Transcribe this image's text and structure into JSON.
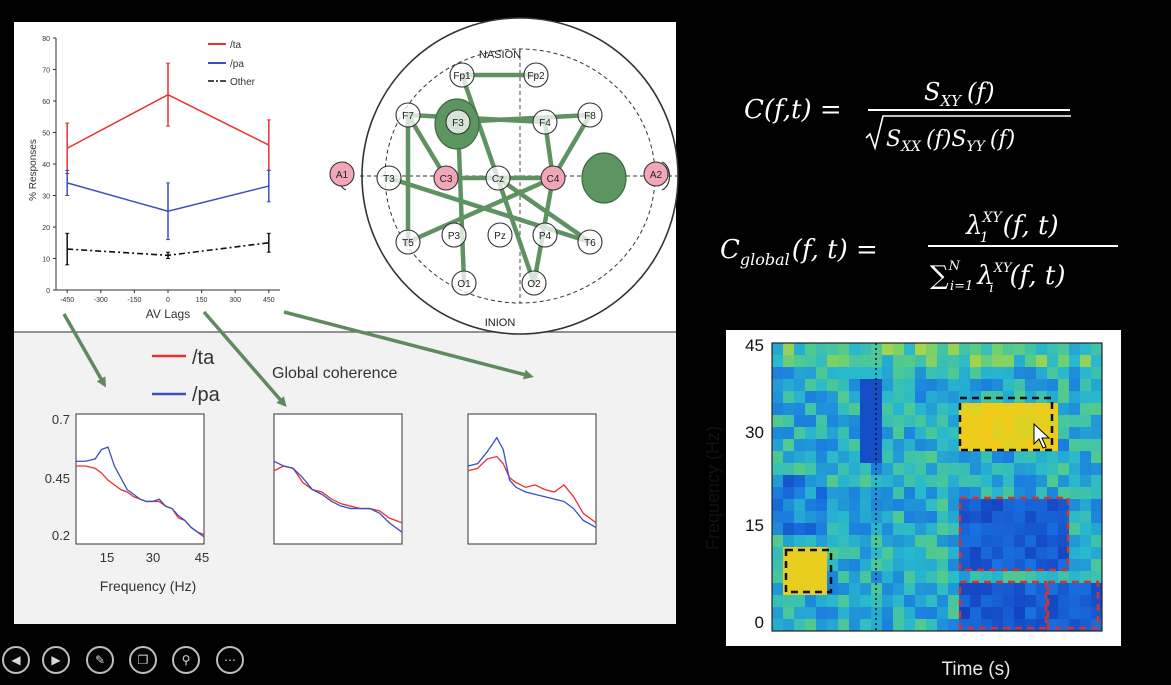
{
  "top_chart": {
    "ylabel": "% Responses",
    "xlabel": "AV Lags",
    "legend": [
      {
        "label": "/ta",
        "color": "#e8312f"
      },
      {
        "label": "/pa",
        "color": "#3b4fc2"
      },
      {
        "label": "Other",
        "color": "#111111"
      }
    ],
    "yticks": [
      "0",
      "10",
      "20",
      "30",
      "40",
      "50",
      "60",
      "70",
      "80"
    ],
    "xticks": [
      "-450",
      "-300",
      "-150",
      "0",
      "150",
      "300",
      "450"
    ]
  },
  "head_map": {
    "top_label": "NASION",
    "bottom_label": "INION",
    "electrodes": [
      "Fp1",
      "Fp2",
      "F7",
      "F3",
      "F4",
      "F8",
      "A1",
      "T3",
      "C3",
      "Cz",
      "C4",
      "A2",
      "T5",
      "P3",
      "Pz",
      "P4",
      "T6",
      "O1",
      "O2"
    ]
  },
  "coherence": {
    "legend": [
      {
        "label": "/ta",
        "color": "#e8312f"
      },
      {
        "label": "/pa",
        "color": "#3b4fc2"
      }
    ],
    "title": "Global coherence",
    "yticks": [
      "0.7",
      "0.45",
      "0.2"
    ],
    "xticks": [
      "15",
      "30",
      "45"
    ],
    "xlabel": "Frequency (Hz)"
  },
  "equations": {
    "eq1_lhs": "C(f,t) =",
    "eq1_num": "S",
    "eq1_num_sub": "XY",
    "eq1_num_arg": "(f)",
    "eq1_den": "S",
    "eq1_den_sub1": "XX",
    "eq1_den_mid": "(f)S",
    "eq1_den_sub2": "YY",
    "eq1_den_arg": "(f)",
    "eq2_lhs": "C",
    "eq2_lhs_sub": "global",
    "eq2_lhs_arg": "(f, t) =",
    "eq2_num": "λ",
    "eq2_num_sub": "1",
    "eq2_num_sup": "XY",
    "eq2_num_arg": "(f, t)",
    "eq2_den_sum": "∑",
    "eq2_den_sum_sub": "i=1",
    "eq2_den_sum_sup": "N",
    "eq2_den": "λ",
    "eq2_den_sub": "i",
    "eq2_den_sup": "XY",
    "eq2_den_arg": "(f, t)"
  },
  "spectrogram": {
    "ylabel": "Frequency (Hz)",
    "xlabel": "Time (s)",
    "yticks": [
      "45",
      "30",
      "15",
      "0"
    ]
  },
  "controls": [
    "prev-icon",
    "next-icon",
    "pen-icon",
    "slides-icon",
    "zoom-icon",
    "more-icon"
  ],
  "chart_data": [
    {
      "type": "line",
      "x": [
        -450,
        0,
        450
      ],
      "series": [
        {
          "name": "/ta",
          "values": [
            45,
            62,
            46
          ],
          "errors": [
            8,
            10,
            8
          ]
        },
        {
          "name": "/pa",
          "values": [
            34,
            25,
            33
          ],
          "errors": [
            4,
            9,
            5
          ]
        },
        {
          "name": "Other",
          "values": [
            13,
            11,
            15
          ],
          "errors": [
            5,
            1,
            3
          ]
        }
      ],
      "xlabel": "AV Lags",
      "ylabel": "% Responses",
      "ylim": [
        0,
        80
      ],
      "xlim": [
        -500,
        500
      ],
      "legend": "top-right"
    },
    {
      "type": "line",
      "x": [
        5,
        8,
        11,
        13,
        15,
        17,
        19,
        21,
        23,
        25,
        27,
        29,
        31,
        33,
        35,
        37,
        39,
        41,
        43,
        45
      ],
      "series": [
        {
          "name": "/ta",
          "values": [
            0.48,
            0.48,
            0.47,
            0.45,
            0.42,
            0.4,
            0.38,
            0.37,
            0.35,
            0.34,
            0.33,
            0.33,
            0.33,
            0.31,
            0.3,
            0.26,
            0.25,
            0.22,
            0.2,
            0.19
          ]
        },
        {
          "name": "/pa",
          "values": [
            0.5,
            0.5,
            0.51,
            0.55,
            0.56,
            0.48,
            0.43,
            0.38,
            0.36,
            0.34,
            0.33,
            0.33,
            0.34,
            0.31,
            0.3,
            0.27,
            0.25,
            0.22,
            0.2,
            0.18
          ]
        }
      ],
      "xlabel": "Frequency (Hz)",
      "ylim": [
        0.2,
        0.7
      ]
    },
    {
      "type": "line",
      "x": [
        5,
        8,
        11,
        14,
        17,
        20,
        23,
        26,
        29,
        32,
        35,
        38,
        41,
        45
      ],
      "series": [
        {
          "name": "/ta",
          "values": [
            0.46,
            0.48,
            0.47,
            0.41,
            0.38,
            0.37,
            0.34,
            0.32,
            0.31,
            0.3,
            0.3,
            0.29,
            0.26,
            0.24
          ]
        },
        {
          "name": "/pa",
          "values": [
            0.5,
            0.48,
            0.47,
            0.43,
            0.38,
            0.36,
            0.33,
            0.31,
            0.3,
            0.3,
            0.3,
            0.28,
            0.24,
            0.2
          ]
        }
      ],
      "ylim": [
        0.2,
        0.7
      ]
    },
    {
      "type": "line",
      "x": [
        5,
        8,
        11,
        14,
        16,
        18,
        20,
        23,
        26,
        29,
        32,
        35,
        38,
        41,
        45
      ],
      "series": [
        {
          "name": "/ta",
          "values": [
            0.46,
            0.47,
            0.51,
            0.52,
            0.49,
            0.43,
            0.41,
            0.39,
            0.4,
            0.38,
            0.37,
            0.4,
            0.35,
            0.28,
            0.24
          ]
        },
        {
          "name": "/pa",
          "values": [
            0.48,
            0.49,
            0.54,
            0.6,
            0.55,
            0.42,
            0.39,
            0.37,
            0.36,
            0.35,
            0.34,
            0.33,
            0.3,
            0.25,
            0.22
          ]
        }
      ],
      "ylim": [
        0.2,
        0.7
      ]
    },
    {
      "type": "heatmap",
      "ylim": [
        0,
        45
      ],
      "ylabel": "Frequency (Hz)",
      "xlabel": "Time (s)"
    }
  ]
}
